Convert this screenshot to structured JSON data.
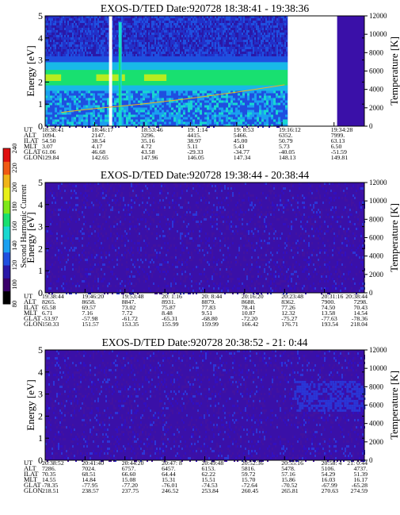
{
  "colorbar": {
    "label": "Second Harmonic Current",
    "ticks": [
      "80",
      "100",
      "120",
      "140",
      "160",
      "180",
      "200",
      "220",
      "240"
    ],
    "range": [
      80,
      240
    ],
    "colors": [
      "#000000",
      "#3a006a",
      "#2a18a8",
      "#1f4fe0",
      "#1aa0f0",
      "#18d8d0",
      "#18e070",
      "#7ee818",
      "#e8f018",
      "#f0b418",
      "#f05a14",
      "#e01010"
    ]
  },
  "row_labels": [
    "UT",
    "ALT",
    "ILAT",
    "MLT",
    "GLAT",
    "GLON"
  ],
  "chart_data": [
    {
      "type": "heatmap",
      "title": "EXOS-D/TED   Date:920728   18:38:41 - 19:38:36",
      "ylabel": "Energy [eV]",
      "y2label": "Temperature [K]",
      "ylim": [
        0,
        5
      ],
      "y2lim": [
        0,
        12000
      ],
      "yticks": [
        "0",
        "1",
        "2",
        "3",
        "4",
        "5"
      ],
      "y2ticks": [
        "0",
        "2000",
        "4000",
        "6000",
        "8000",
        "10000",
        "12000"
      ],
      "data_coverage": [
        0,
        0.76
      ],
      "data_resume": 0.915,
      "band": {
        "level": "high",
        "center_ev": 2.2
      },
      "temperature_series": {
        "x": [
          0.05,
          0.15,
          0.3,
          0.45,
          0.6,
          0.75
        ],
        "y": [
          1500,
          1900,
          2400,
          3000,
          3700,
          4500
        ]
      },
      "table": {
        "UT": [
          "18:38:41",
          "18:46:17",
          "18:53:46",
          "19: 1:14",
          "19: 8:53",
          "19:16:12",
          "19:34:28"
        ],
        "ALT": [
          "1094.",
          "2147.",
          "3296.",
          "4415.",
          "5466.",
          "6352.",
          "7999."
        ],
        "ILAT": [
          "54.50",
          "38.54",
          "35.16",
          "38.97",
          "45.00",
          "50.79",
          "63.13"
        ],
        "MLT": [
          "3.07",
          "4.17",
          "4.72",
          "5.11",
          "5.43",
          "5.73",
          "6.50"
        ],
        "GLAT": [
          "61.06",
          "46.68",
          "43.58",
          "-29.33",
          "-34.77",
          "-40.05",
          "-51.59"
        ],
        "GLON": [
          "129.84",
          "142.65",
          "147.96",
          "146.05",
          "147.34",
          "148.13",
          "149.81"
        ]
      }
    },
    {
      "type": "heatmap",
      "title": "EXOS-D/TED   Date:920728   19:38:44 - 20:38:44",
      "ylabel": "Energy [eV]",
      "y2label": "Temperature [K]",
      "ylim": [
        0,
        5
      ],
      "y2lim": [
        0,
        12000
      ],
      "yticks": [
        "0",
        "1",
        "2",
        "3",
        "4",
        "5"
      ],
      "y2ticks": [
        "0",
        "2000",
        "4000",
        "6000",
        "8000",
        "10000",
        "12000"
      ],
      "data_coverage": [
        0,
        1
      ],
      "band": {
        "level": "low"
      },
      "table": {
        "UT": [
          "19:38:44",
          "19:46:20",
          "19:53:48",
          "20: 1:16",
          "20: 8:44",
          "20:16:20",
          "20:23:48",
          "20:31:16",
          "20:38:44"
        ],
        "ALT": [
          "8265.",
          "8658.",
          "8847.",
          "8931.",
          "8879.",
          "8688.",
          "8362.",
          "7900.",
          "7298."
        ],
        "ILAT": [
          "65.58",
          "69.57",
          "73.02",
          "75.87",
          "77.83",
          "78.41",
          "77.26",
          "74.50",
          "70.43"
        ],
        "MLT": [
          "6.71",
          "7.16",
          "7.72",
          "8.48",
          "9.51",
          "10.87",
          "12.32",
          "13.58",
          "14.54"
        ],
        "GLAT": [
          "-53.97",
          "-57.98",
          "-61.72",
          "-65.31",
          "-68.80",
          "-72.20",
          "-75.27",
          "-77.63",
          "-78.36"
        ],
        "GLON": [
          "150.33",
          "151.57",
          "153.35",
          "155.99",
          "159.99",
          "166.42",
          "176.71",
          "193.54",
          "218.04"
        ]
      }
    },
    {
      "type": "heatmap",
      "title": "EXOS-D/TED   Date:920728   20:38:52 - 21: 0:44",
      "ylabel": "Energy [eV]",
      "y2label": "Temperature [K]",
      "ylim": [
        0,
        5
      ],
      "y2lim": [
        0,
        12000
      ],
      "yticks": [
        "0",
        "1",
        "2",
        "3",
        "4",
        "5"
      ],
      "y2ticks": [
        "0",
        "2000",
        "4000",
        "6000",
        "8000",
        "10000",
        "12000"
      ],
      "data_coverage": [
        0,
        1
      ],
      "band": {
        "level": "low"
      },
      "table": {
        "UT": [
          "20:38:52",
          "20:41:40",
          "20:44:20",
          "20:47: 8",
          "20:49:48",
          "20:52:36",
          "20:55:16",
          "20:58: 4",
          "21: 0:44"
        ],
        "ALT": [
          "7286.",
          "7024.",
          "6757.",
          "6457.",
          "6153.",
          "5816.",
          "5478.",
          "5106.",
          "4737."
        ],
        "ILAT": [
          "70.35",
          "68.51",
          "66.60",
          "64.44",
          "62.22",
          "59.72",
          "57.16",
          "54.29",
          "51.39"
        ],
        "MLT": [
          "14.55",
          "14.84",
          "15.08",
          "15.31",
          "15.51",
          "15.70",
          "15.86",
          "16.03",
          "16.17"
        ],
        "GLAT": [
          "-78.35",
          "-77.95",
          "-77.20",
          "-76.01",
          "-74.53",
          "-72.64",
          "-70.52",
          "-67.99",
          "-65.28"
        ],
        "GLON": [
          "218.51",
          "238.57",
          "237.75",
          "246.52",
          "253.84",
          "260.45",
          "265.81",
          "270.63",
          "274.59"
        ]
      }
    }
  ]
}
